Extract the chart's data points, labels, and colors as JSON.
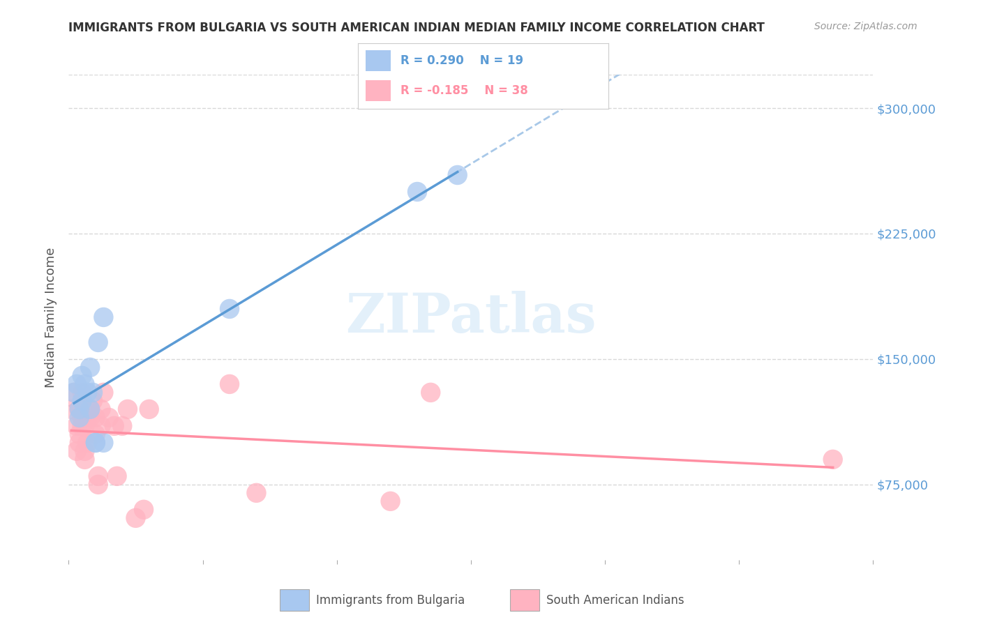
{
  "title": "IMMIGRANTS FROM BULGARIA VS SOUTH AMERICAN INDIAN MEDIAN FAMILY INCOME CORRELATION CHART",
  "source": "Source: ZipAtlas.com",
  "ylabel": "Median Family Income",
  "yticks": [
    75000,
    150000,
    225000,
    300000
  ],
  "ytick_labels": [
    "$75,000",
    "$150,000",
    "$225,000",
    "$300,000"
  ],
  "xlim": [
    0.0,
    0.3
  ],
  "ylim": [
    30000,
    320000
  ],
  "watermark": "ZIPatlas",
  "blue_r": "R = 0.290",
  "blue_n": "N = 19",
  "pink_r": "R = -0.185",
  "pink_n": "N = 38",
  "legend_label_blue": "Immigrants from Bulgaria",
  "legend_label_pink": "South American Indians",
  "blue_scatter_x": [
    0.002,
    0.003,
    0.004,
    0.004,
    0.005,
    0.005,
    0.006,
    0.007,
    0.008,
    0.008,
    0.009,
    0.01,
    0.01,
    0.011,
    0.013,
    0.013,
    0.06,
    0.13,
    0.145
  ],
  "blue_scatter_y": [
    130000,
    135000,
    120000,
    115000,
    140000,
    125000,
    135000,
    130000,
    145000,
    120000,
    130000,
    100000,
    100000,
    160000,
    175000,
    100000,
    180000,
    250000,
    260000
  ],
  "pink_scatter_x": [
    0.001,
    0.002,
    0.003,
    0.003,
    0.004,
    0.004,
    0.004,
    0.005,
    0.005,
    0.005,
    0.006,
    0.006,
    0.006,
    0.007,
    0.007,
    0.008,
    0.008,
    0.009,
    0.01,
    0.01,
    0.011,
    0.011,
    0.012,
    0.012,
    0.013,
    0.015,
    0.017,
    0.018,
    0.02,
    0.022,
    0.025,
    0.028,
    0.03,
    0.06,
    0.07,
    0.12,
    0.135,
    0.285
  ],
  "pink_scatter_y": [
    120000,
    130000,
    110000,
    95000,
    105000,
    120000,
    100000,
    130000,
    115000,
    110000,
    95000,
    90000,
    110000,
    115000,
    100000,
    120000,
    115000,
    125000,
    115000,
    105000,
    75000,
    80000,
    120000,
    110000,
    130000,
    115000,
    110000,
    80000,
    110000,
    120000,
    55000,
    60000,
    120000,
    135000,
    70000,
    65000,
    130000,
    90000
  ],
  "blue_line_color": "#5b9bd5",
  "blue_dashed_color": "#a8c8e8",
  "pink_line_color": "#ff8fa3",
  "scatter_blue_color": "#a8c8f0",
  "scatter_pink_color": "#ffb3c1",
  "background_color": "#ffffff",
  "grid_color": "#d8d8d8",
  "title_color": "#333333",
  "axis_label_color": "#555555",
  "right_axis_color": "#5b9bd5"
}
